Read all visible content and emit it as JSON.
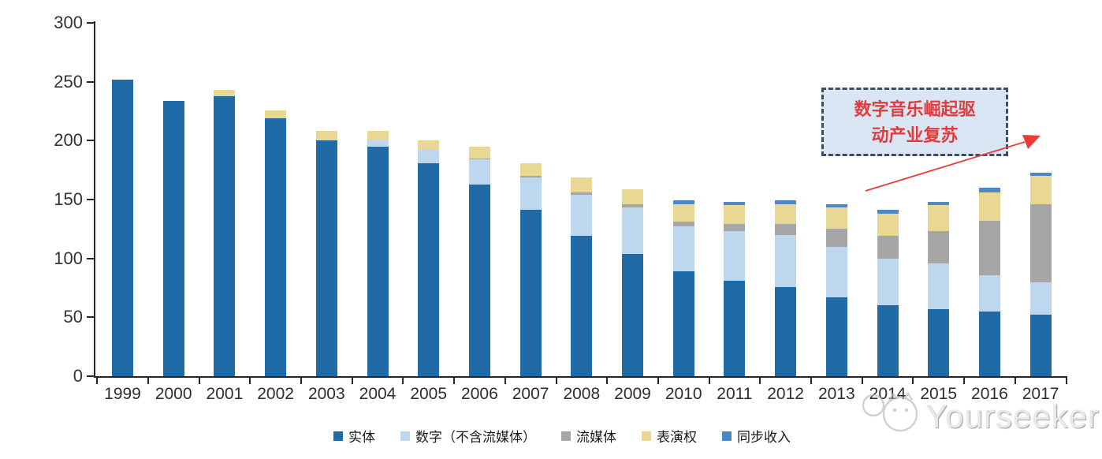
{
  "chart_data": {
    "type": "bar",
    "stacked": true,
    "title": "",
    "xlabel": "",
    "ylabel": "",
    "categories": [
      "1999",
      "2000",
      "2001",
      "2002",
      "2003",
      "2004",
      "2005",
      "2006",
      "2007",
      "2008",
      "2009",
      "2010",
      "2011",
      "2012",
      "2013",
      "2014",
      "2015",
      "2016",
      "2017"
    ],
    "series": [
      {
        "name": "实体",
        "color": "#1F6BA8",
        "values": [
          252,
          234,
          238,
          219,
          200,
          195,
          181,
          163,
          141,
          119,
          104,
          89,
          81,
          76,
          67,
          60,
          57,
          55,
          52
        ]
      },
      {
        "name": "数字（不含流媒体）",
        "color": "#BDD7EE",
        "values": [
          0,
          0,
          0,
          0,
          0,
          5,
          11,
          21,
          28,
          35,
          39,
          38,
          42,
          44,
          43,
          40,
          39,
          31,
          28
        ]
      },
      {
        "name": "流媒体",
        "color": "#A6A6A6",
        "values": [
          0,
          0,
          0,
          0,
          0,
          0,
          0,
          1,
          1,
          2,
          3,
          4,
          6,
          9,
          15,
          19,
          27,
          46,
          66
        ]
      },
      {
        "name": "表演权",
        "color": "#E8D894",
        "values": [
          0,
          0,
          5,
          7,
          8,
          8,
          8,
          10,
          11,
          13,
          13,
          15,
          16,
          17,
          18,
          19,
          22,
          24,
          24
        ]
      },
      {
        "name": "同步收入",
        "color": "#4E87C6",
        "values": [
          0,
          0,
          0,
          0,
          0,
          0,
          0,
          0,
          0,
          0,
          0,
          3,
          3,
          3,
          3,
          3,
          3,
          4,
          3
        ]
      }
    ],
    "y_axis": {
      "min": 0,
      "max": 300,
      "tick_step": 50,
      "ticks": [
        0,
        50,
        100,
        150,
        200,
        250,
        300
      ]
    },
    "legend_position": "bottom",
    "grid": false
  },
  "annotation": {
    "line1": "数字音乐崛起驱",
    "line2": "动产业复苏",
    "text_color": "#E03C3C",
    "box_fill": "#D9E5F3",
    "border_color": "#3D4E63",
    "arrow_color": "#EA3B38"
  },
  "watermark": {
    "text": "Yourseeker",
    "color": "#C8C8C8"
  },
  "axis_color": "#262626"
}
